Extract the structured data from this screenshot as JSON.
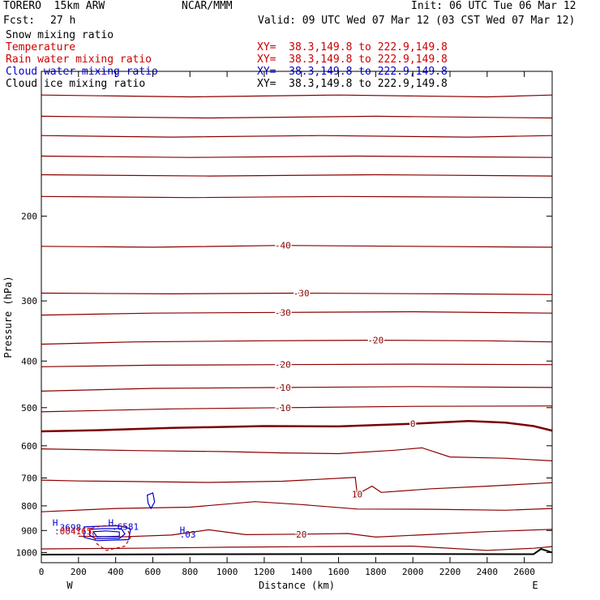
{
  "header": {
    "model": "TORERO  15km ARW",
    "center": "NCAR/MMM",
    "init": "Init: 06 UTC Tue 06 Mar 12",
    "fcst_label": "Fcst:",
    "fcst_value": "27 h",
    "valid": "Valid: 09 UTC Wed 07 Mar 12 (03 CST Wed 07 Mar 12)"
  },
  "fields": [
    {
      "label": "Snow mixing ratio",
      "xy": "",
      "color": "#000000"
    },
    {
      "label": "Temperature",
      "xy": "XY=  38.3,149.8 to 222.9,149.8",
      "color": "#cc0000"
    },
    {
      "label": "Rain water mixing ratio",
      "xy": "XY=  38.3,149.8 to 222.9,149.8",
      "color": "#cc0000"
    },
    {
      "label": "Cloud water mixing ratio",
      "xy": "XY=  38.3,149.8 to 222.9,149.8",
      "color": "#0000cc"
    },
    {
      "label": "Cloud ice mixing ratio",
      "xy": "XY=  38.3,149.8 to 222.9,149.8",
      "color": "#000000"
    }
  ],
  "chart_data": {
    "type": "line",
    "subtype": "vertical cross-section contour plot",
    "xlabel": "Distance (km)",
    "ylabel": "Pressure (hPa)",
    "xlim": [
      0,
      2750
    ],
    "ylim": [
      1050,
      100
    ],
    "y_scale": "log",
    "x_ticks": [
      0,
      200,
      400,
      600,
      800,
      1000,
      1200,
      1400,
      1600,
      1800,
      2000,
      2200,
      2400,
      2600
    ],
    "y_ticks": [
      200,
      300,
      400,
      500,
      600,
      700,
      800,
      900,
      1000
    ],
    "x_end_labels": {
      "left": "W",
      "right": "E"
    },
    "colors": {
      "temperature": "#8b0000",
      "temperature_zero": "#7a0000",
      "cloud_water": "#0000cc",
      "rain_water": "#cc0000",
      "terrain": "#000000"
    },
    "isotherms": [
      {
        "level": "",
        "points": [
          [
            0,
            112
          ],
          [
            800,
            113
          ],
          [
            1600,
            112
          ],
          [
            2400,
            113
          ],
          [
            2750,
            112
          ]
        ]
      },
      {
        "level": "",
        "points": [
          [
            0,
            124
          ],
          [
            900,
            125
          ],
          [
            1800,
            124
          ],
          [
            2750,
            125
          ]
        ]
      },
      {
        "level": "",
        "points": [
          [
            0,
            136
          ],
          [
            700,
            137
          ],
          [
            1500,
            136
          ],
          [
            2300,
            137
          ],
          [
            2750,
            136
          ]
        ]
      },
      {
        "level": "",
        "points": [
          [
            0,
            150
          ],
          [
            800,
            151
          ],
          [
            1700,
            150
          ],
          [
            2750,
            151
          ]
        ]
      },
      {
        "level": "",
        "points": [
          [
            0,
            164
          ],
          [
            900,
            165
          ],
          [
            1800,
            164
          ],
          [
            2750,
            165
          ]
        ]
      },
      {
        "level": "",
        "points": [
          [
            0,
            182
          ],
          [
            800,
            183
          ],
          [
            1600,
            182
          ],
          [
            2750,
            183
          ]
        ]
      },
      {
        "level": "-40",
        "points": [
          [
            0,
            231
          ],
          [
            600,
            232
          ],
          [
            1300,
            230
          ],
          [
            2000,
            231
          ],
          [
            2750,
            232
          ]
        ]
      },
      {
        "level": "-30",
        "points": [
          [
            0,
            289
          ],
          [
            700,
            290
          ],
          [
            1400,
            289
          ],
          [
            2200,
            290
          ],
          [
            2750,
            291
          ]
        ]
      },
      {
        "level": "-30",
        "points": [
          [
            0,
            321
          ],
          [
            600,
            318
          ],
          [
            1300,
            317
          ],
          [
            2000,
            316
          ],
          [
            2750,
            318
          ]
        ]
      },
      {
        "level": "-20",
        "points": [
          [
            0,
            369
          ],
          [
            500,
            365
          ],
          [
            1200,
            363
          ],
          [
            1800,
            362
          ],
          [
            2400,
            363
          ],
          [
            2750,
            365
          ]
        ]
      },
      {
        "level": "-20",
        "points": [
          [
            0,
            411
          ],
          [
            600,
            408
          ],
          [
            1300,
            407
          ],
          [
            2000,
            406
          ],
          [
            2750,
            407
          ]
        ]
      },
      {
        "level": "-10",
        "points": [
          [
            0,
            462
          ],
          [
            600,
            456
          ],
          [
            1300,
            454
          ],
          [
            2000,
            452
          ],
          [
            2750,
            454
          ]
        ]
      },
      {
        "level": "-10",
        "points": [
          [
            0,
            510
          ],
          [
            700,
            503
          ],
          [
            1300,
            500
          ],
          [
            2000,
            497
          ],
          [
            2750,
            496
          ]
        ]
      },
      {
        "level": "0",
        "points": [
          [
            0,
            560
          ],
          [
            300,
            557
          ],
          [
            700,
            551
          ],
          [
            1200,
            546
          ],
          [
            1600,
            547
          ],
          [
            2000,
            540
          ],
          [
            2300,
            533
          ],
          [
            2500,
            537
          ],
          [
            2650,
            546
          ],
          [
            2750,
            558
          ]
        ]
      },
      {
        "level": "",
        "points": [
          [
            0,
            609
          ],
          [
            500,
            614
          ],
          [
            1000,
            617
          ],
          [
            1300,
            621
          ],
          [
            1600,
            623
          ],
          [
            1900,
            613
          ],
          [
            2050,
            606
          ],
          [
            2200,
            633
          ],
          [
            2500,
            637
          ],
          [
            2750,
            645
          ]
        ]
      },
      {
        "level": "10",
        "points": [
          [
            0,
            707
          ],
          [
            200,
            710
          ],
          [
            500,
            712
          ],
          [
            900,
            715
          ],
          [
            1300,
            711
          ],
          [
            1690,
            698
          ],
          [
            1700,
            757
          ],
          [
            1780,
            728
          ],
          [
            1830,
            750
          ],
          [
            2100,
            737
          ],
          [
            2400,
            728
          ],
          [
            2750,
            716
          ]
        ]
      },
      {
        "level": "",
        "points": [
          [
            0,
            823
          ],
          [
            400,
            810
          ],
          [
            800,
            805
          ],
          [
            1150,
            784
          ],
          [
            1400,
            795
          ],
          [
            1700,
            812
          ],
          [
            2100,
            813
          ],
          [
            2500,
            817
          ],
          [
            2750,
            810
          ]
        ]
      },
      {
        "level": "20",
        "points": [
          [
            200,
            925
          ],
          [
            420,
            928
          ],
          [
            700,
            920
          ],
          [
            900,
            897
          ],
          [
            1100,
            918
          ],
          [
            1400,
            916
          ],
          [
            1650,
            913
          ],
          [
            1800,
            929
          ],
          [
            2100,
            917
          ],
          [
            2400,
            905
          ],
          [
            2750,
            895
          ]
        ]
      },
      {
        "level": "",
        "points": [
          [
            0,
            983
          ],
          [
            500,
            980
          ],
          [
            1000,
            975
          ],
          [
            1500,
            972
          ],
          [
            2000,
            970
          ],
          [
            2400,
            990
          ],
          [
            2650,
            980
          ],
          [
            2750,
            972
          ]
        ]
      }
    ],
    "terrain": {
      "points": [
        [
          0,
          1010
        ],
        [
          1000,
          1008
        ],
        [
          2000,
          1007
        ],
        [
          2650,
          1008
        ],
        [
          2690,
          983
        ],
        [
          2750,
          1000
        ]
      ]
    },
    "cloud_water": [
      {
        "level": "",
        "points": [
          [
            570,
            760
          ],
          [
            600,
            752
          ],
          [
            610,
            785
          ],
          [
            590,
            810
          ],
          [
            575,
            790
          ]
        ]
      },
      {
        "level": "",
        "points": [
          [
            230,
            885
          ],
          [
            300,
            882
          ],
          [
            420,
            880
          ],
          [
            480,
            893
          ],
          [
            470,
            940
          ],
          [
            300,
            945
          ],
          [
            230,
            930
          ]
        ]
      },
      {
        "level": "",
        "points": [
          [
            260,
            895
          ],
          [
            330,
            892
          ],
          [
            430,
            892
          ],
          [
            450,
            915
          ],
          [
            420,
            935
          ],
          [
            290,
            936
          ],
          [
            260,
            920
          ]
        ]
      },
      {
        "level": "",
        "points": [
          [
            280,
            905
          ],
          [
            350,
            902
          ],
          [
            420,
            906
          ],
          [
            420,
            925
          ],
          [
            300,
            928
          ]
        ]
      }
    ],
    "rain_water": [
      {
        "level": "",
        "points": [
          [
            270,
            890
          ],
          [
            330,
            880
          ],
          [
            400,
            878
          ],
          [
            460,
            885
          ],
          [
            480,
            930
          ],
          [
            450,
            970
          ],
          [
            350,
            990
          ],
          [
            300,
            960
          ],
          [
            280,
            920
          ]
        ]
      }
    ],
    "labels": [
      {
        "text": "H",
        "x": 60,
        "y": 880,
        "color": "#0000cc"
      },
      {
        "text": ".3698",
        "x": 70,
        "y": 901,
        "color": "#0000cc"
      },
      {
        "text": ".004165",
        "x": 70,
        "y": 917,
        "color": "#cc0000"
      },
      {
        "text": "H",
        "x": 360,
        "y": 880,
        "color": "#0000cc"
      },
      {
        "text": ".6581",
        "x": 380,
        "y": 898,
        "color": "#0000cc"
      },
      {
        "text": "H",
        "x": 745,
        "y": 912,
        "color": "#0000cc"
      },
      {
        "text": ".03",
        "x": 745,
        "y": 931,
        "color": "#0000cc"
      }
    ]
  }
}
